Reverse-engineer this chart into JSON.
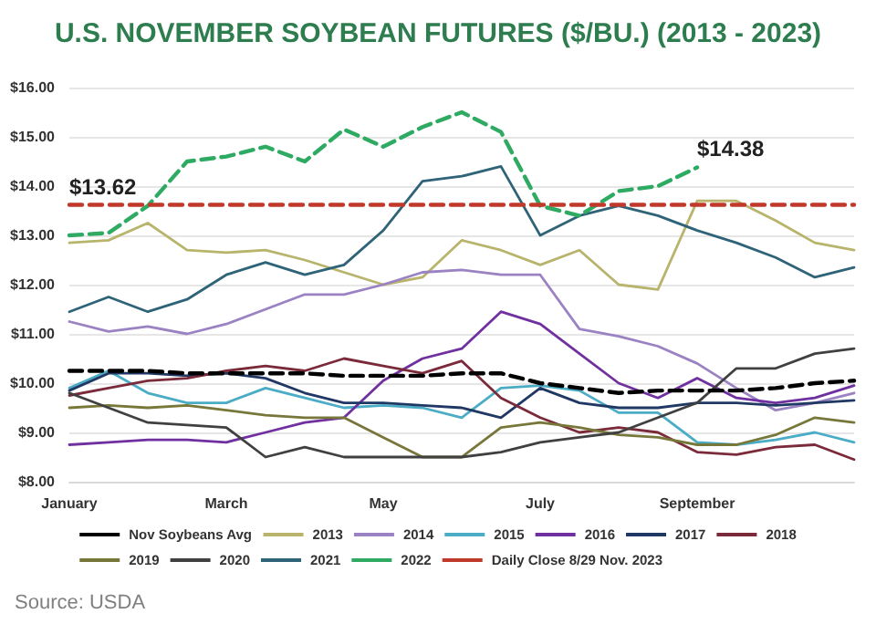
{
  "chart_data": {
    "type": "line",
    "title": "U.S. NOVEMBER SOYBEAN FUTURES ($/BU.) (2013 - 2023)",
    "categories": [
      "January",
      null,
      null,
      null,
      "March",
      null,
      null,
      null,
      "May",
      null,
      null,
      null,
      "July",
      null,
      null,
      null,
      "September",
      null,
      null,
      null,
      null
    ],
    "series": [
      {
        "name": "Nov Soybeans Avg",
        "color": "#000000",
        "line_style": "dashed",
        "values": [
          10.25,
          10.25,
          10.25,
          10.2,
          10.2,
          10.2,
          10.2,
          10.15,
          10.15,
          10.15,
          10.2,
          10.2,
          10.0,
          9.9,
          9.8,
          9.85,
          9.85,
          9.85,
          9.9,
          10.0,
          10.05
        ]
      },
      {
        "name": "2013",
        "color": "#b8b46c",
        "values": [
          12.85,
          12.9,
          13.25,
          12.7,
          12.65,
          12.7,
          12.5,
          12.25,
          12.0,
          12.15,
          12.9,
          12.7,
          12.4,
          12.7,
          12.0,
          11.9,
          13.7,
          13.7,
          13.3,
          12.85,
          12.7
        ]
      },
      {
        "name": "2014",
        "color": "#9b82c2",
        "values": [
          11.25,
          11.05,
          11.15,
          11.0,
          11.2,
          11.5,
          11.8,
          11.8,
          12.0,
          12.25,
          12.3,
          12.2,
          12.2,
          11.1,
          10.95,
          10.75,
          10.4,
          9.9,
          9.45,
          9.6,
          9.8
        ]
      },
      {
        "name": "2015",
        "color": "#4bacc6",
        "values": [
          9.9,
          10.25,
          9.8,
          9.6,
          9.6,
          9.9,
          9.7,
          9.5,
          9.55,
          9.5,
          9.3,
          9.9,
          9.95,
          9.85,
          9.4,
          9.4,
          8.8,
          8.75,
          8.85,
          9.0,
          8.8
        ]
      },
      {
        "name": "2016",
        "color": "#7030a0",
        "values": [
          8.75,
          8.8,
          8.85,
          8.85,
          8.8,
          9.0,
          9.2,
          9.3,
          10.05,
          10.5,
          10.7,
          11.45,
          11.2,
          10.6,
          10.0,
          9.7,
          10.1,
          9.7,
          9.6,
          9.7,
          9.95
        ]
      },
      {
        "name": "2017",
        "color": "#203864",
        "values": [
          9.85,
          10.2,
          10.2,
          10.15,
          10.2,
          10.1,
          9.8,
          9.6,
          9.6,
          9.55,
          9.5,
          9.3,
          9.9,
          9.6,
          9.5,
          9.5,
          9.6,
          9.6,
          9.55,
          9.6,
          9.65
        ]
      },
      {
        "name": "2018",
        "color": "#7b2a3a",
        "values": [
          9.75,
          9.9,
          10.05,
          10.1,
          10.25,
          10.35,
          10.25,
          10.5,
          10.35,
          10.2,
          10.45,
          9.7,
          9.3,
          9.0,
          9.1,
          9.0,
          8.6,
          8.55,
          8.7,
          8.75,
          8.45
        ]
      },
      {
        "name": "2019",
        "color": "#77773a",
        "values": [
          9.5,
          9.55,
          9.5,
          9.55,
          9.45,
          9.35,
          9.3,
          9.3,
          8.9,
          8.5,
          8.5,
          9.1,
          9.2,
          9.1,
          8.95,
          8.9,
          8.75,
          8.75,
          8.95,
          9.3,
          9.2
        ]
      },
      {
        "name": "2020",
        "color": "#404040",
        "values": [
          9.8,
          9.5,
          9.2,
          9.15,
          9.1,
          8.5,
          8.7,
          8.5,
          8.5,
          8.5,
          8.5,
          8.6,
          8.8,
          8.9,
          9.0,
          9.3,
          9.6,
          10.3,
          10.3,
          10.6,
          10.7
        ]
      },
      {
        "name": "2021",
        "color": "#2e6378",
        "values": [
          11.45,
          11.75,
          11.45,
          11.7,
          12.2,
          12.45,
          12.2,
          12.4,
          13.1,
          14.1,
          14.2,
          14.4,
          13.0,
          13.4,
          13.6,
          13.4,
          13.1,
          12.85,
          12.55,
          12.15,
          12.35
        ]
      },
      {
        "name": "2022",
        "color": "#2eaa62",
        "line_style": "dashed",
        "values": [
          13.0,
          13.05,
          13.6,
          14.5,
          14.6,
          14.8,
          14.5,
          15.15,
          14.8,
          15.2,
          15.5,
          15.1,
          13.6,
          13.4,
          13.9,
          14.0,
          14.38,
          null,
          null,
          null,
          null
        ],
        "value_labels": [
          null,
          null,
          null,
          null,
          null,
          null,
          null,
          null,
          null,
          null,
          null,
          null,
          null,
          null,
          null,
          null,
          "$14.38",
          null,
          null,
          null,
          null
        ]
      },
      {
        "name": "Daily Close 8/29 Nov. 2023",
        "color": "#c0392b",
        "line_style": "dashed",
        "values": [
          13.62,
          13.62,
          13.62,
          13.62,
          13.62,
          13.62,
          13.62,
          13.62,
          13.62,
          13.62,
          13.62,
          13.62,
          13.62,
          13.62,
          13.62,
          13.62,
          13.62,
          13.62,
          13.62,
          13.62,
          13.62
        ],
        "value_labels": [
          "$13.62",
          null,
          null,
          null,
          null,
          null,
          null,
          null,
          null,
          null,
          null,
          null,
          null,
          null,
          null,
          null,
          null,
          null,
          null,
          null,
          null
        ]
      }
    ],
    "ylim": [
      8,
      16
    ],
    "yticks": [
      {
        "value": 8,
        "label": "$8.00"
      },
      {
        "value": 9,
        "label": "$9.00"
      },
      {
        "value": 10,
        "label": "$10.00"
      },
      {
        "value": 11,
        "label": "$11.00"
      },
      {
        "value": 12,
        "label": "$12.00"
      },
      {
        "value": 13,
        "label": "$13.00"
      },
      {
        "value": 14,
        "label": "$14.00"
      },
      {
        "value": 15,
        "label": "$15.00"
      },
      {
        "value": 16,
        "label": "$16.00"
      }
    ],
    "grid": "y",
    "legend": "bottom",
    "marker": "none",
    "annotations": [
      "Source: USDA"
    ]
  }
}
